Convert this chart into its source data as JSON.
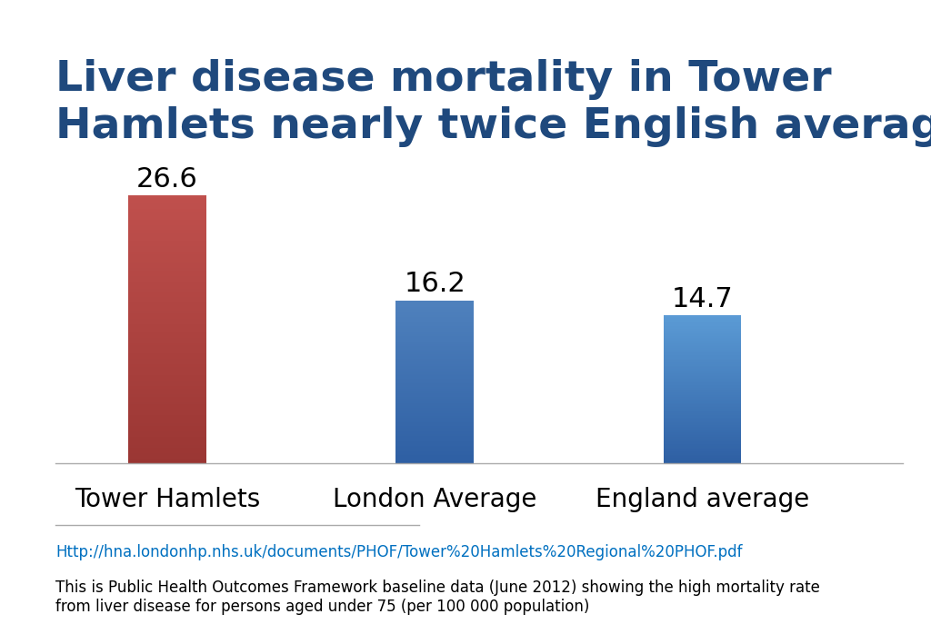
{
  "categories": [
    "Tower Hamlets",
    "London Average",
    "England average"
  ],
  "values": [
    26.6,
    16.2,
    14.7
  ],
  "bar_colors_top": [
    "#c0504d",
    "#4f81bd",
    "#5b9bd5"
  ],
  "bar_colors_bottom": [
    "#9a3633",
    "#2e5fa3",
    "#2e5fa3"
  ],
  "title_line1": "Liver disease mortality in Tower",
  "title_line2": "Hamlets nearly twice English average",
  "title_color": "#1F497D",
  "title_fontsize": 34,
  "value_fontsize": 22,
  "xlabel_fontsize": 20,
  "background_color": "#ffffff",
  "ylim": [
    0,
    30
  ],
  "bar_width": 0.35,
  "x_positions": [
    0.5,
    1.7,
    2.9
  ],
  "xlim": [
    0,
    3.8
  ],
  "url_text": "Http://hna.londonhp.nhs.uk/documents/PHOF/Tower%20Hamlets%20Regional%20PHOF.pdf",
  "footer_text": "This is Public Health Outcomes Framework baseline data (June 2012) showing the high mortality rate\nfrom liver disease for persons aged under 75 (per 100 000 population)",
  "url_color": "#0070C0",
  "footer_color": "#000000",
  "footer_fontsize": 12,
  "url_fontsize": 12,
  "line_color": "#aaaaaa"
}
